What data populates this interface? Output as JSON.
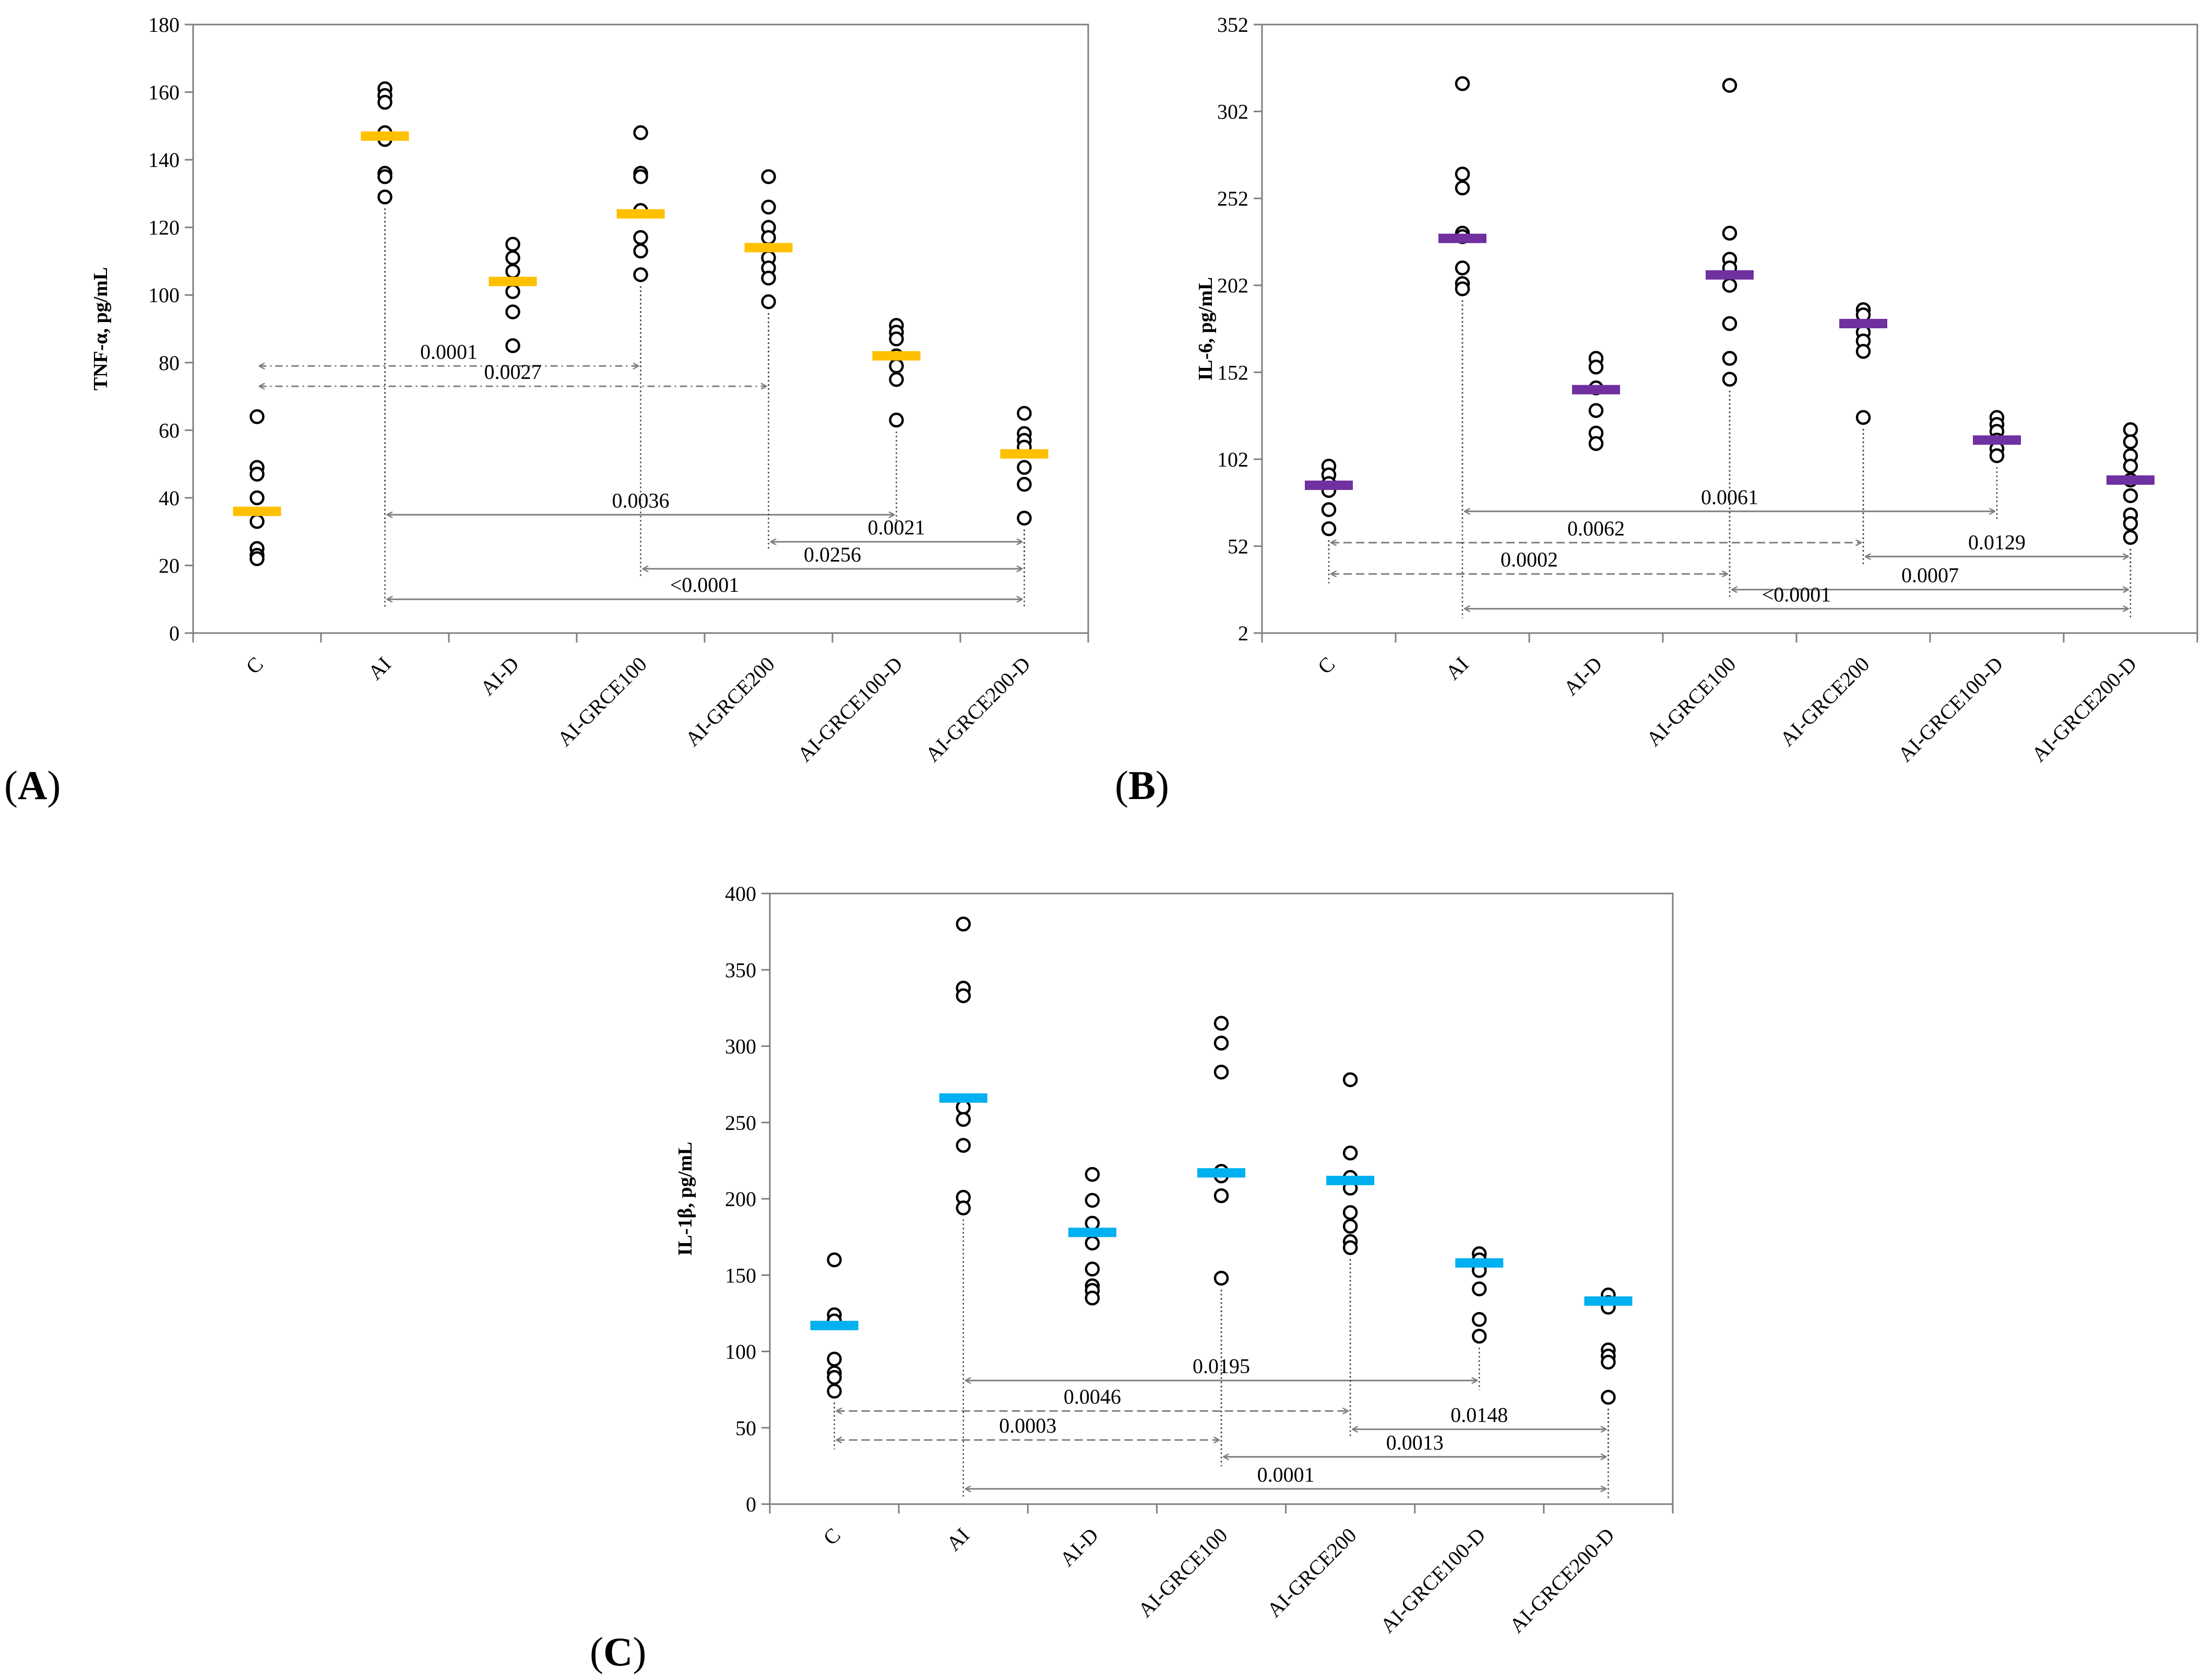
{
  "figure": {
    "panel_labels": [
      "A",
      "B",
      "C"
    ]
  },
  "chart_data": [
    {
      "type": "scatter",
      "panel": "A",
      "title": "",
      "ylabel": "TNF-α, pg/mL",
      "xlabel": "",
      "ylim": [
        0,
        180
      ],
      "yticks": [
        0,
        20,
        40,
        60,
        80,
        100,
        120,
        140,
        160,
        180
      ],
      "categories": [
        "C",
        "AI",
        "AI-D",
        "AI-GRCE100",
        "AI-GRCE200",
        "AI-GRCE100-D",
        "AI-GRCE200-D"
      ],
      "mean_color": "#FFC000",
      "means": [
        36,
        147,
        104,
        124,
        114,
        82,
        53
      ],
      "points": [
        [
          64,
          49,
          47,
          40,
          33,
          25,
          23,
          22
        ],
        [
          161,
          159,
          157,
          148,
          146,
          136,
          135,
          129
        ],
        [
          115,
          111,
          107,
          101,
          95,
          85
        ],
        [
          148,
          136,
          135,
          125,
          117,
          113,
          106
        ],
        [
          135,
          126,
          120,
          117,
          111,
          108,
          105,
          98
        ],
        [
          91,
          89,
          87,
          82,
          79,
          75,
          63
        ],
        [
          65,
          59,
          57,
          55,
          49,
          44,
          34
        ]
      ],
      "comparisons": [
        {
          "from": "C",
          "to": "AI-GRCE100",
          "y": 79,
          "p": "0.0001",
          "style": "dashdot"
        },
        {
          "from": "C",
          "to": "AI-GRCE200",
          "y": 73,
          "p": "0.0027",
          "style": "dashdot"
        },
        {
          "from": "AI",
          "to": "AI-GRCE100-D",
          "y": 35,
          "p": "0.0036",
          "style": "solid"
        },
        {
          "from": "AI-GRCE200",
          "to": "AI-GRCE200-D",
          "y": 27,
          "p": "0.0021",
          "style": "solid"
        },
        {
          "from": "AI-GRCE100",
          "to": "AI-GRCE200-D",
          "y": 19,
          "p": "0.0256",
          "style": "solid"
        },
        {
          "from": "AI",
          "to": "AI-GRCE200-D",
          "y": 10,
          "p": "<0.0001",
          "style": "solid"
        }
      ]
    },
    {
      "type": "scatter",
      "panel": "B",
      "title": "",
      "ylabel": "IL-6, pg/mL",
      "xlabel": "",
      "ylim": [
        2,
        352
      ],
      "yticks": [
        2,
        52,
        102,
        152,
        202,
        252,
        302,
        352
      ],
      "categories": [
        "C",
        "AI",
        "AI-D",
        "AI-GRCE100",
        "AI-GRCE200",
        "AI-GRCE100-D",
        "AI-GRCE200-D"
      ],
      "mean_color": "#7030A0",
      "means": [
        87,
        229,
        142,
        208,
        180,
        113,
        90
      ],
      "points": [
        [
          98,
          93,
          88,
          84,
          73,
          62
        ],
        [
          318,
          266,
          258,
          232,
          230,
          212,
          203,
          200
        ],
        [
          160,
          155,
          143,
          130,
          117,
          111
        ],
        [
          317,
          232,
          217,
          212,
          202,
          180,
          160,
          148
        ],
        [
          188,
          185,
          175,
          170,
          164,
          126
        ],
        [
          126,
          122,
          118,
          113,
          108,
          104
        ],
        [
          119,
          112,
          104,
          98,
          90,
          81,
          70,
          65,
          57
        ]
      ],
      "comparisons": [
        {
          "from": "AI",
          "to": "AI-GRCE100-D",
          "y": 72,
          "p": "0.0061",
          "style": "solid"
        },
        {
          "from": "C",
          "to": "AI-GRCE200",
          "y": 54,
          "p": "0.0062",
          "style": "dashed"
        },
        {
          "from": "AI-GRCE200",
          "to": "AI-GRCE200-D",
          "y": 46,
          "p": "0.0129",
          "style": "solid"
        },
        {
          "from": "C",
          "to": "AI-GRCE100",
          "y": 36,
          "p": "0.0002",
          "style": "dashed"
        },
        {
          "from": "AI-GRCE100",
          "to": "AI-GRCE200-D",
          "y": 27,
          "p": "0.0007",
          "style": "solid"
        },
        {
          "from": "AI",
          "to": "AI-GRCE200-D",
          "y": 16,
          "p": "<0.0001",
          "style": "solid"
        }
      ]
    },
    {
      "type": "scatter",
      "panel": "C",
      "title": "",
      "ylabel": "IL-1β, pg/mL",
      "xlabel": "",
      "ylim": [
        0,
        400
      ],
      "yticks": [
        0,
        50,
        100,
        150,
        200,
        250,
        300,
        350,
        400
      ],
      "categories": [
        "C",
        "AI",
        "AI-D",
        "AI-GRCE100",
        "AI-GRCE200",
        "AI-GRCE100-D",
        "AI-GRCE200-D"
      ],
      "mean_color": "#00B0F0",
      "means": [
        117,
        266,
        178,
        217,
        212,
        158,
        133
      ],
      "points": [
        [
          160,
          124,
          120,
          95,
          86,
          83,
          74
        ],
        [
          380,
          338,
          333,
          260,
          252,
          235,
          201,
          194
        ],
        [
          216,
          199,
          184,
          171,
          154,
          143,
          140,
          135
        ],
        [
          315,
          302,
          283,
          218,
          215,
          202,
          148
        ],
        [
          278,
          230,
          214,
          207,
          191,
          182,
          172,
          168
        ],
        [
          164,
          160,
          155,
          153,
          141,
          121,
          110
        ],
        [
          137,
          132,
          129,
          101,
          97,
          93,
          70
        ]
      ],
      "comparisons": [
        {
          "from": "AI",
          "to": "AI-GRCE100-D",
          "y": 81,
          "p": "0.0195",
          "style": "solid"
        },
        {
          "from": "C",
          "to": "AI-GRCE200",
          "y": 61,
          "p": "0.0046",
          "style": "dashed"
        },
        {
          "from": "AI-GRCE200",
          "to": "AI-GRCE200-D",
          "y": 49,
          "p": "0.0148",
          "style": "solid"
        },
        {
          "from": "C",
          "to": "AI-GRCE100",
          "y": 42,
          "p": "0.0003",
          "style": "dashed"
        },
        {
          "from": "AI-GRCE100",
          "to": "AI-GRCE200-D",
          "y": 31,
          "p": "0.0013",
          "style": "solid"
        },
        {
          "from": "AI",
          "to": "AI-GRCE200-D",
          "y": 10,
          "p": "0.0001",
          "style": "solid"
        }
      ]
    }
  ]
}
